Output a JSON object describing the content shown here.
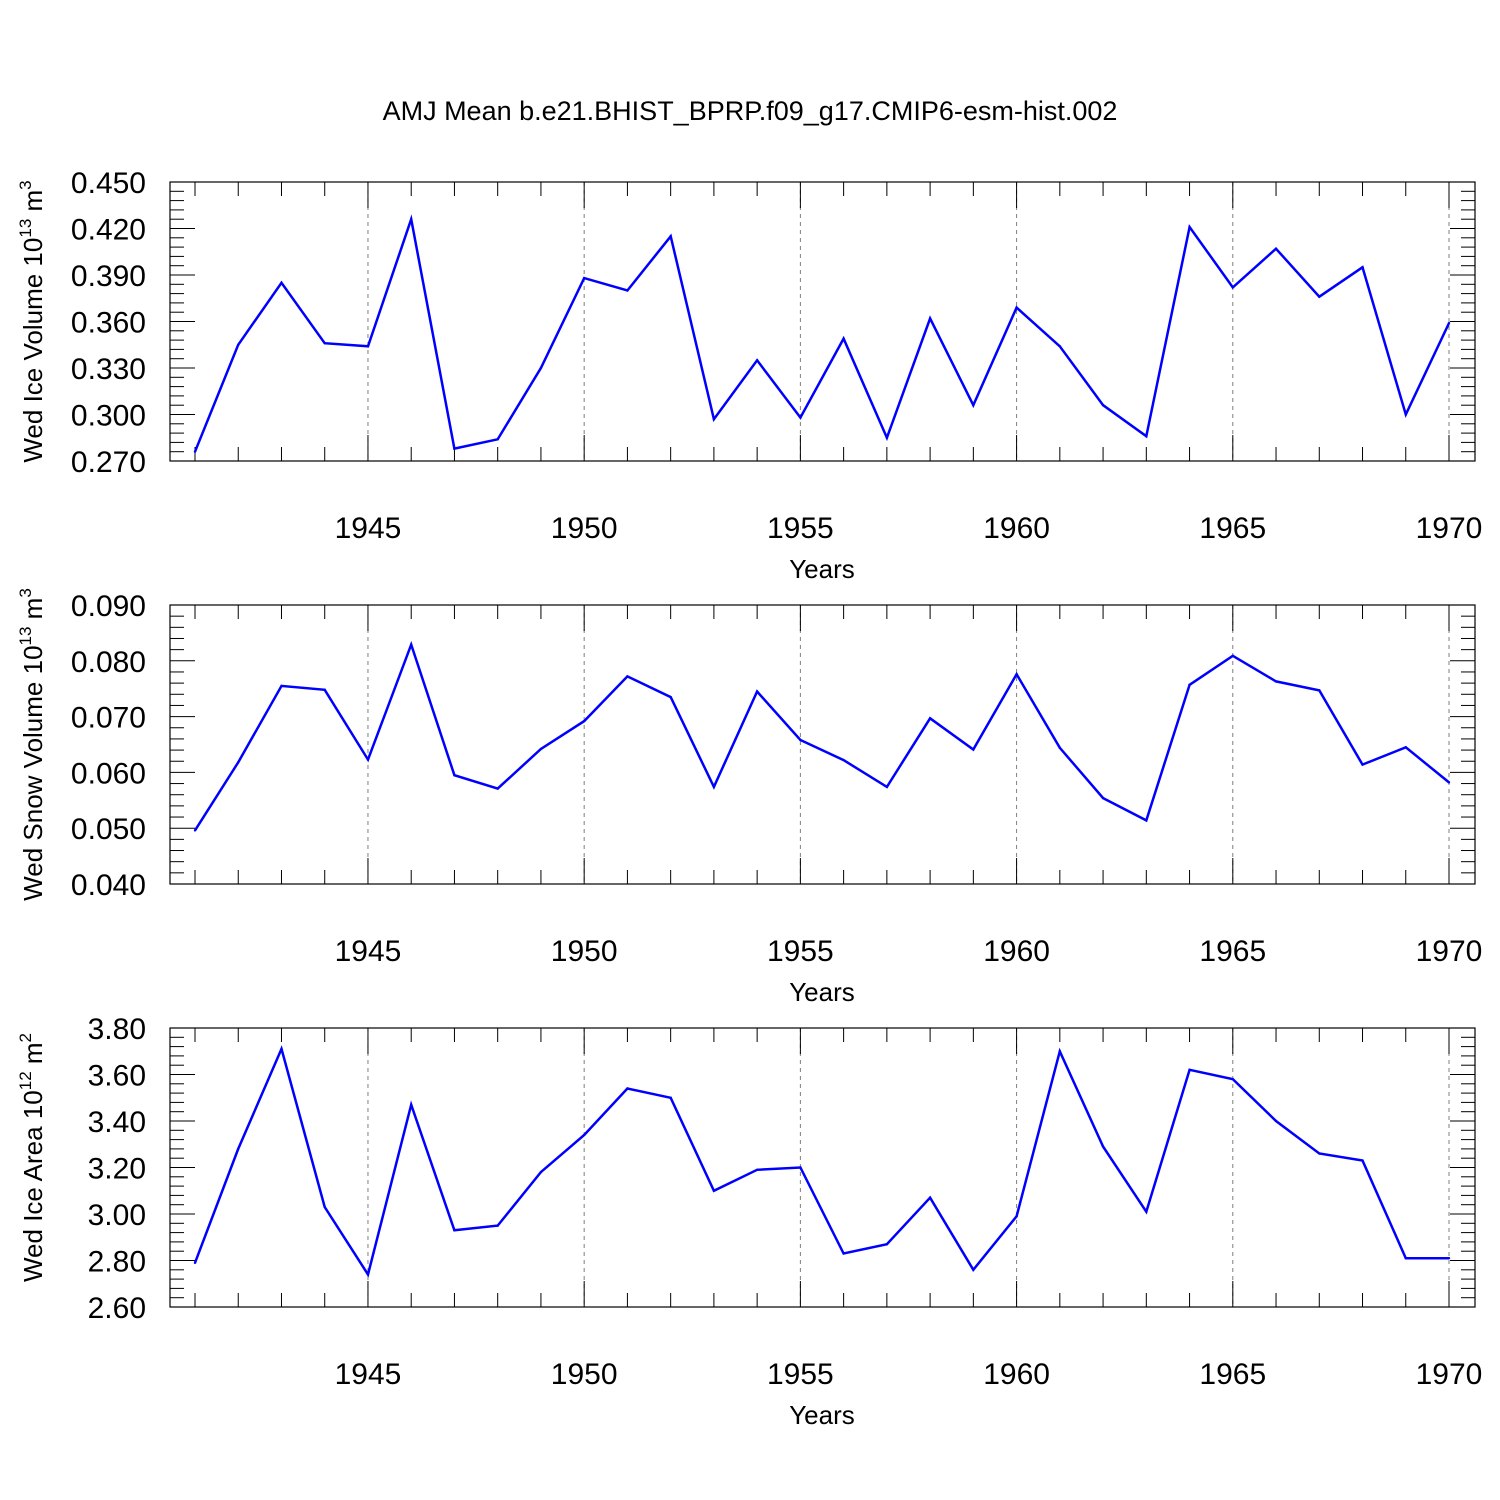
{
  "title": "AMJ Mean b.e21.BHIST_BPRP.f09_g17.CMIP6-esm-hist.002",
  "colors": {
    "line": "#0000ff",
    "axis": "#000000",
    "grid": "#7f7f7f"
  },
  "chart_data": [
    {
      "type": "line",
      "ylabel": "Wed Ice Volume 10",
      "ylabel_exp": "13",
      "ylabel_unit": " m",
      "ylabel_unit_exp": "3",
      "xlabel": "Years",
      "xlim": [
        1941,
        1970
      ],
      "ylim": [
        0.27,
        0.45
      ],
      "yticks": [
        0.27,
        0.3,
        0.33,
        0.36,
        0.39,
        0.42,
        0.45
      ],
      "ytick_labels": [
        "0.270",
        "0.300",
        "0.330",
        "0.360",
        "0.390",
        "0.420",
        "0.450"
      ],
      "xticks": [
        1945,
        1950,
        1955,
        1960,
        1965,
        1970
      ],
      "xtick_labels": [
        "1945",
        "1950",
        "1955",
        "1960",
        "1965",
        "1970"
      ],
      "x": [
        1941,
        1942,
        1943,
        1944,
        1945,
        1946,
        1947,
        1948,
        1949,
        1950,
        1951,
        1952,
        1953,
        1954,
        1955,
        1956,
        1957,
        1958,
        1959,
        1960,
        1961,
        1962,
        1963,
        1964,
        1965,
        1966,
        1967,
        1968,
        1969,
        1970
      ],
      "values": [
        0.276,
        0.345,
        0.385,
        0.346,
        0.344,
        0.426,
        0.278,
        0.284,
        0.33,
        0.388,
        0.38,
        0.415,
        0.297,
        0.335,
        0.298,
        0.349,
        0.285,
        0.362,
        0.306,
        0.369,
        0.344,
        0.306,
        0.286,
        0.421,
        0.382,
        0.407,
        0.376,
        0.395,
        0.3,
        0.359
      ]
    },
    {
      "type": "line",
      "ylabel": "Wed Snow Volume 10",
      "ylabel_exp": "13",
      "ylabel_unit": " m",
      "ylabel_unit_exp": "3",
      "xlabel": "Years",
      "xlim": [
        1941,
        1970
      ],
      "ylim": [
        0.04,
        0.09
      ],
      "yticks": [
        0.04,
        0.05,
        0.06,
        0.07,
        0.08,
        0.09
      ],
      "ytick_labels": [
        "0.040",
        "0.050",
        "0.060",
        "0.070",
        "0.080",
        "0.090"
      ],
      "xticks": [
        1945,
        1950,
        1955,
        1960,
        1965,
        1970
      ],
      "xtick_labels": [
        "1945",
        "1950",
        "1955",
        "1960",
        "1965",
        "1970"
      ],
      "x": [
        1941,
        1942,
        1943,
        1944,
        1945,
        1946,
        1947,
        1948,
        1949,
        1950,
        1951,
        1952,
        1953,
        1954,
        1955,
        1956,
        1957,
        1958,
        1959,
        1960,
        1961,
        1962,
        1963,
        1964,
        1965,
        1966,
        1967,
        1968,
        1969,
        1970
      ],
      "values": [
        0.0496,
        0.0618,
        0.0755,
        0.0748,
        0.0623,
        0.0829,
        0.0595,
        0.0571,
        0.0642,
        0.0692,
        0.0772,
        0.0735,
        0.0574,
        0.0745,
        0.0658,
        0.0622,
        0.0574,
        0.0697,
        0.0641,
        0.0776,
        0.0644,
        0.0554,
        0.0514,
        0.0757,
        0.0809,
        0.0763,
        0.0747,
        0.0614,
        0.0645,
        0.0582
      ]
    },
    {
      "type": "line",
      "ylabel": "Wed Ice Area 10",
      "ylabel_exp": "12",
      "ylabel_unit": " m",
      "ylabel_unit_exp": "2",
      "xlabel": "Years",
      "xlim": [
        1941,
        1970
      ],
      "ylim": [
        2.6,
        3.8
      ],
      "yticks": [
        2.6,
        2.8,
        3.0,
        3.2,
        3.4,
        3.6,
        3.8
      ],
      "ytick_labels": [
        "2.60",
        "2.80",
        "3.00",
        "3.20",
        "3.40",
        "3.60",
        "3.80"
      ],
      "xticks": [
        1945,
        1950,
        1955,
        1960,
        1965,
        1970
      ],
      "xtick_labels": [
        "1945",
        "1950",
        "1955",
        "1960",
        "1965",
        "1970"
      ],
      "x": [
        1941,
        1942,
        1943,
        1944,
        1945,
        1946,
        1947,
        1948,
        1949,
        1950,
        1951,
        1952,
        1953,
        1954,
        1955,
        1956,
        1957,
        1958,
        1959,
        1960,
        1961,
        1962,
        1963,
        1964,
        1965,
        1966,
        1967,
        1968,
        1969,
        1970
      ],
      "values": [
        2.79,
        3.28,
        3.71,
        3.03,
        2.74,
        3.47,
        2.93,
        2.95,
        3.18,
        3.34,
        3.54,
        3.5,
        3.1,
        3.19,
        3.2,
        2.83,
        2.87,
        3.07,
        2.76,
        2.99,
        3.7,
        3.29,
        3.01,
        3.62,
        3.58,
        3.4,
        3.26,
        3.23,
        2.81,
        2.81
      ]
    }
  ]
}
